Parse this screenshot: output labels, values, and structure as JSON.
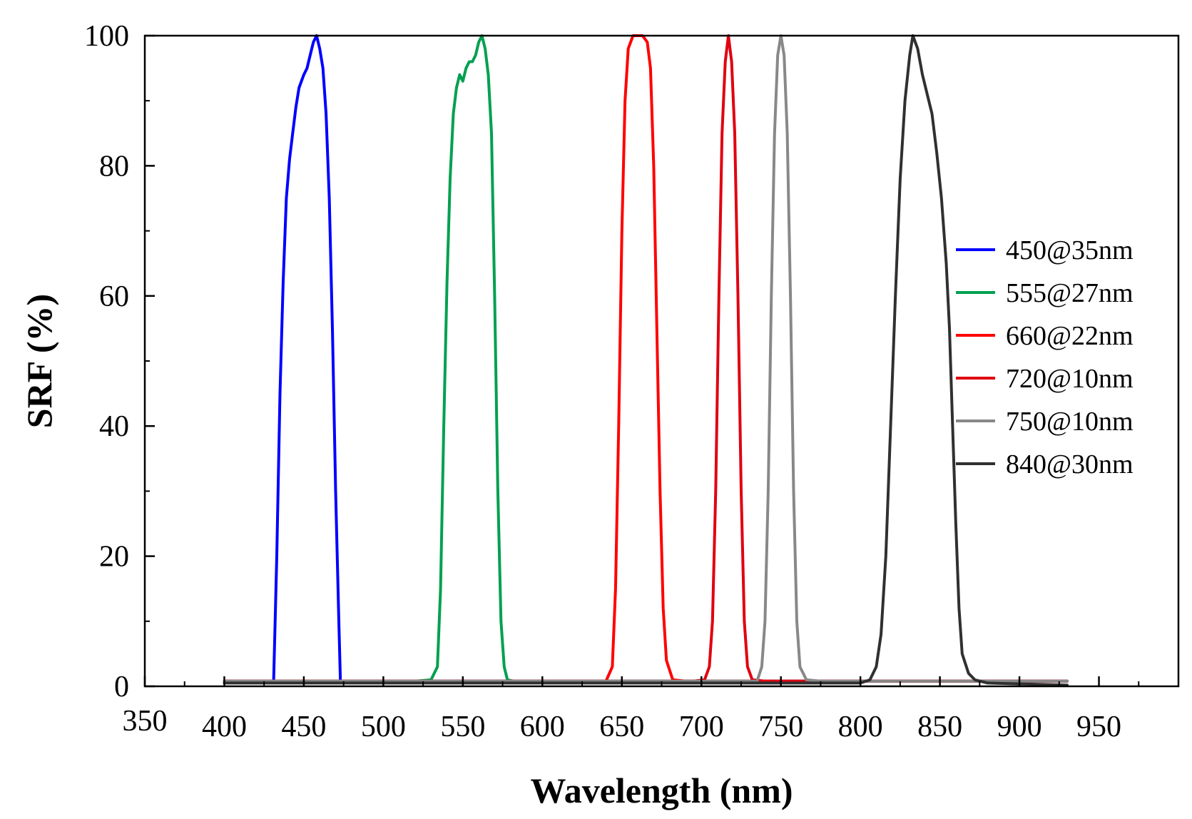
{
  "chart_data": {
    "type": "line",
    "title": "",
    "xlabel": "Wavelength (nm)",
    "ylabel": "SRF (%)",
    "xlim": [
      350,
      1000
    ],
    "ylim": [
      0,
      100
    ],
    "x_ticks": [
      350,
      400,
      450,
      500,
      550,
      600,
      650,
      700,
      750,
      800,
      850,
      900,
      950
    ],
    "y_ticks": [
      0,
      20,
      40,
      60,
      80,
      100
    ],
    "grid": false,
    "legend_position": "right",
    "series": [
      {
        "name": "450@35nm",
        "color": "#0000ff",
        "points": [
          [
            400,
            0.8
          ],
          [
            428,
            0.8
          ],
          [
            431,
            0.8
          ],
          [
            433,
            20
          ],
          [
            435,
            45
          ],
          [
            437,
            62
          ],
          [
            439,
            75
          ],
          [
            441,
            81
          ],
          [
            443,
            85
          ],
          [
            445,
            89
          ],
          [
            447,
            92
          ],
          [
            450,
            94
          ],
          [
            452,
            95
          ],
          [
            454,
            97
          ],
          [
            456,
            99
          ],
          [
            458,
            100
          ],
          [
            460,
            98
          ],
          [
            462,
            95
          ],
          [
            464,
            88
          ],
          [
            466,
            75
          ],
          [
            468,
            55
          ],
          [
            470,
            30
          ],
          [
            472,
            10
          ],
          [
            473,
            0.8
          ],
          [
            930,
            0.8
          ]
        ]
      },
      {
        "name": "555@27nm",
        "color": "#00a050",
        "points": [
          [
            400,
            0.8
          ],
          [
            520,
            0.8
          ],
          [
            530,
            1
          ],
          [
            534,
            3
          ],
          [
            536,
            15
          ],
          [
            538,
            40
          ],
          [
            540,
            62
          ],
          [
            542,
            78
          ],
          [
            544,
            88
          ],
          [
            546,
            92
          ],
          [
            548,
            94
          ],
          [
            550,
            93
          ],
          [
            552,
            95
          ],
          [
            554,
            96
          ],
          [
            556,
            96
          ],
          [
            558,
            97
          ],
          [
            560,
            99
          ],
          [
            562,
            100
          ],
          [
            564,
            98
          ],
          [
            566,
            94
          ],
          [
            568,
            85
          ],
          [
            570,
            60
          ],
          [
            572,
            30
          ],
          [
            574,
            10
          ],
          [
            576,
            3
          ],
          [
            578,
            1
          ],
          [
            582,
            0.8
          ],
          [
            930,
            0.8
          ]
        ]
      },
      {
        "name": "660@22nm",
        "color": "#ff0000",
        "points": [
          [
            400,
            0.8
          ],
          [
            640,
            0.8
          ],
          [
            644,
            3
          ],
          [
            646,
            15
          ],
          [
            648,
            40
          ],
          [
            650,
            70
          ],
          [
            652,
            90
          ],
          [
            654,
            98
          ],
          [
            657,
            100
          ],
          [
            663,
            100
          ],
          [
            666,
            99
          ],
          [
            668,
            95
          ],
          [
            670,
            80
          ],
          [
            672,
            55
          ],
          [
            674,
            30
          ],
          [
            676,
            12
          ],
          [
            678,
            4
          ],
          [
            682,
            1
          ],
          [
            690,
            0.8
          ],
          [
            930,
            0.8
          ]
        ]
      },
      {
        "name": "720@10nm",
        "color": "#e00010",
        "points": [
          [
            400,
            0.8
          ],
          [
            695,
            0.8
          ],
          [
            702,
            1
          ],
          [
            705,
            3
          ],
          [
            707,
            10
          ],
          [
            709,
            30
          ],
          [
            711,
            60
          ],
          [
            713,
            85
          ],
          [
            715,
            96
          ],
          [
            717,
            100
          ],
          [
            719,
            96
          ],
          [
            721,
            85
          ],
          [
            723,
            60
          ],
          [
            725,
            30
          ],
          [
            727,
            10
          ],
          [
            729,
            3
          ],
          [
            732,
            1
          ],
          [
            740,
            0.8
          ],
          [
            930,
            0.8
          ]
        ]
      },
      {
        "name": "750@10nm",
        "color": "#888888",
        "points": [
          [
            400,
            0.8
          ],
          [
            735,
            0.8
          ],
          [
            738,
            3
          ],
          [
            740,
            10
          ],
          [
            742,
            30
          ],
          [
            744,
            60
          ],
          [
            746,
            85
          ],
          [
            748,
            97
          ],
          [
            750,
            100
          ],
          [
            752,
            97
          ],
          [
            754,
            85
          ],
          [
            756,
            60
          ],
          [
            758,
            30
          ],
          [
            760,
            10
          ],
          [
            762,
            3
          ],
          [
            766,
            1
          ],
          [
            775,
            0.8
          ],
          [
            930,
            0.8
          ]
        ]
      },
      {
        "name": "840@30nm",
        "color": "#303030",
        "points": [
          [
            400,
            0.5
          ],
          [
            800,
            0.5
          ],
          [
            806,
            1
          ],
          [
            810,
            3
          ],
          [
            813,
            8
          ],
          [
            816,
            20
          ],
          [
            819,
            40
          ],
          [
            822,
            60
          ],
          [
            825,
            78
          ],
          [
            828,
            90
          ],
          [
            831,
            97
          ],
          [
            833,
            100
          ],
          [
            836,
            98
          ],
          [
            839,
            94
          ],
          [
            842,
            91
          ],
          [
            845,
            88
          ],
          [
            848,
            82
          ],
          [
            851,
            75
          ],
          [
            854,
            65
          ],
          [
            856,
            55
          ],
          [
            858,
            40
          ],
          [
            860,
            25
          ],
          [
            862,
            12
          ],
          [
            864,
            5
          ],
          [
            868,
            2
          ],
          [
            872,
            1
          ],
          [
            880,
            0.5
          ],
          [
            930,
            0.2
          ]
        ]
      }
    ]
  }
}
